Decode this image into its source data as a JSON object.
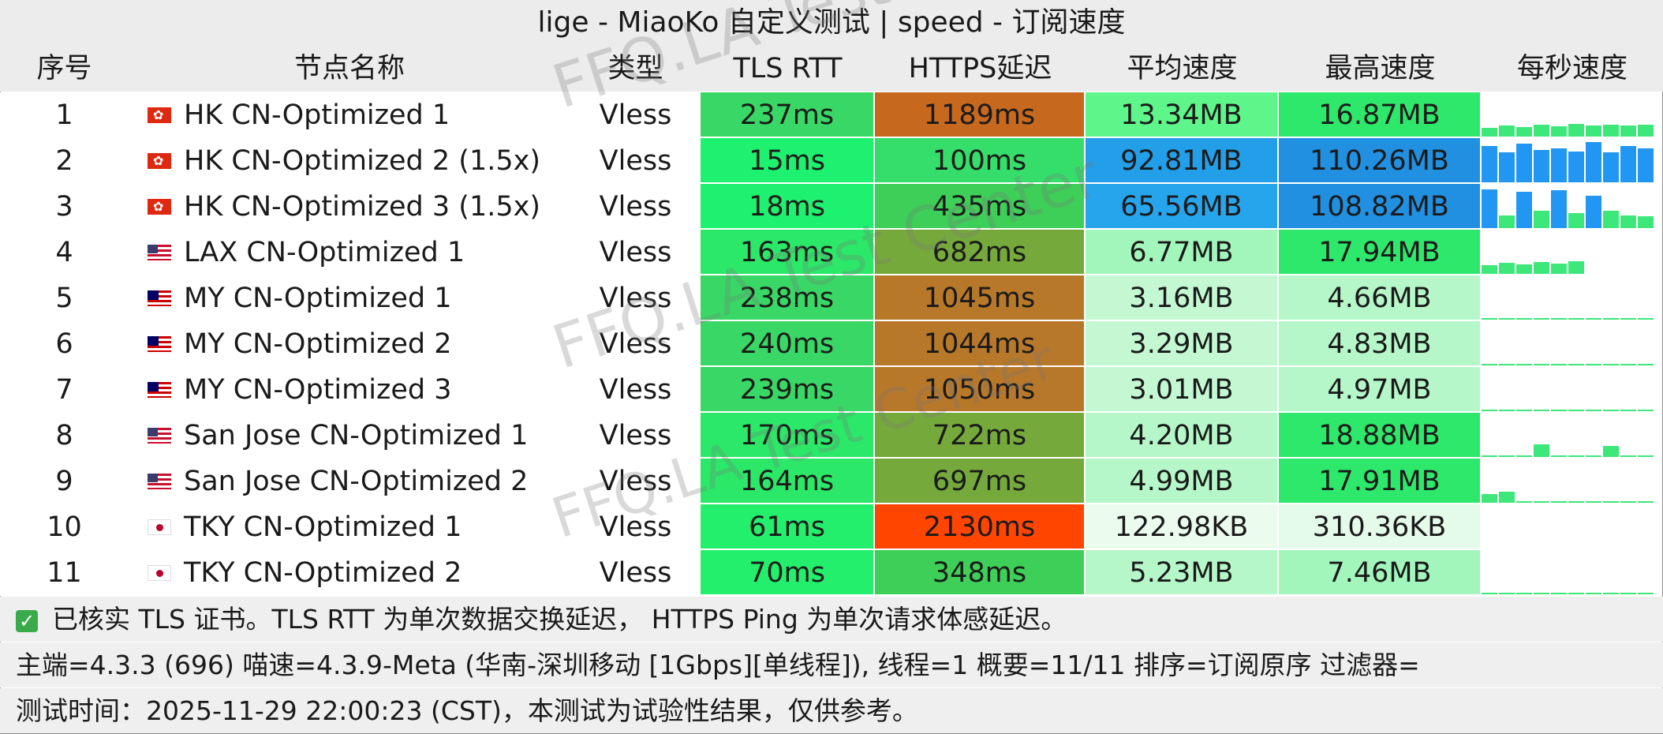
{
  "title": "lige - MiaoKo 自定义测试 | speed - 订阅速度",
  "headers": [
    "序号",
    "节点名称",
    "类型",
    "TLS RTT",
    "HTTPS延迟",
    "平均速度",
    "最高速度",
    "每秒速度"
  ],
  "rows": [
    {
      "idx": "1",
      "flag": "hk",
      "name": "HK CN-Optimized 1",
      "type": "Vless",
      "rtt": "237ms",
      "https": "1189ms",
      "avg": "13.34MB",
      "max": "16.87MB",
      "colors": {
        "rtt": "#39d866",
        "https": "#c6691e",
        "avg": "#5ef58b",
        "max": "#2ee86c"
      },
      "spark": [
        0.2,
        0.25,
        0.22,
        0.28,
        0.24,
        0.3,
        0.26,
        0.28,
        0.25,
        0.27
      ]
    },
    {
      "idx": "2",
      "flag": "hk",
      "name": "HK CN-Optimized 2 (1.5x)",
      "type": "Vless",
      "rtt": "15ms",
      "https": "100ms",
      "avg": "92.81MB",
      "max": "110.26MB",
      "colors": {
        "rtt": "#1ef06f",
        "https": "#35de6a",
        "avg": "#239ee8",
        "max": "#2190e0"
      },
      "spark": [
        0.85,
        0.7,
        0.9,
        0.75,
        0.8,
        0.72,
        0.95,
        0.7,
        0.85,
        0.8
      ]
    },
    {
      "idx": "3",
      "flag": "hk",
      "name": "HK CN-Optimized 3 (1.5x)",
      "type": "Vless",
      "rtt": "18ms",
      "https": "435ms",
      "avg": "65.56MB",
      "max": "108.82MB",
      "colors": {
        "rtt": "#1ef06f",
        "https": "#3dcf58",
        "avg": "#26a5ec",
        "max": "#2190e0"
      },
      "spark": [
        0.9,
        0.3,
        0.85,
        0.4,
        0.88,
        0.35,
        0.75,
        0.4,
        0.3,
        0.28
      ]
    },
    {
      "idx": "4",
      "flag": "us",
      "name": "LAX CN-Optimized 1",
      "type": "Vless",
      "rtt": "163ms",
      "https": "682ms",
      "avg": "6.77MB",
      "max": "17.94MB",
      "colors": {
        "rtt": "#2be868",
        "https": "#76a93c",
        "avg": "#a2f6bc",
        "max": "#2ee86c"
      },
      "spark": [
        0.2,
        0.25,
        0.22,
        0.28,
        0.24,
        0.3,
        0,
        0,
        0,
        0
      ]
    },
    {
      "idx": "5",
      "flag": "my",
      "name": "MY CN-Optimized 1",
      "type": "Vless",
      "rtt": "238ms",
      "https": "1045ms",
      "avg": "3.16MB",
      "max": "4.66MB",
      "colors": {
        "rtt": "#39d866",
        "https": "#b8782a",
        "avg": "#c3f8d2",
        "max": "#b6f7c9"
      },
      "spark": [
        0.04,
        0.04,
        0.04,
        0.04,
        0.04,
        0.04,
        0.04,
        0.04,
        0.04,
        0.04
      ]
    },
    {
      "idx": "6",
      "flag": "my",
      "name": "MY CN-Optimized 2",
      "type": "Vless",
      "rtt": "240ms",
      "https": "1044ms",
      "avg": "3.29MB",
      "max": "4.83MB",
      "colors": {
        "rtt": "#39d866",
        "https": "#b8782a",
        "avg": "#c3f8d2",
        "max": "#b6f7c9"
      },
      "spark": [
        0.04,
        0.04,
        0.04,
        0.04,
        0.04,
        0.04,
        0.04,
        0.04,
        0.04,
        0.04
      ]
    },
    {
      "idx": "7",
      "flag": "my",
      "name": "MY CN-Optimized 3",
      "type": "Vless",
      "rtt": "239ms",
      "https": "1050ms",
      "avg": "3.01MB",
      "max": "4.97MB",
      "colors": {
        "rtt": "#39d866",
        "https": "#b8782a",
        "avg": "#c3f8d2",
        "max": "#b6f7c9"
      },
      "spark": [
        0.04,
        0.04,
        0.04,
        0.04,
        0.04,
        0.04,
        0.04,
        0.04,
        0.04,
        0.04
      ]
    },
    {
      "idx": "8",
      "flag": "us",
      "name": "San Jose CN-Optimized 1",
      "type": "Vless",
      "rtt": "170ms",
      "https": "722ms",
      "avg": "4.20MB",
      "max": "18.88MB",
      "colors": {
        "rtt": "#2be868",
        "https": "#76a93c",
        "avg": "#b6f7c9",
        "max": "#2ee86c"
      },
      "spark": [
        0.04,
        0.04,
        0.04,
        0.3,
        0.04,
        0.04,
        0.04,
        0.25,
        0.04,
        0.04
      ]
    },
    {
      "idx": "9",
      "flag": "us",
      "name": "San Jose CN-Optimized 2",
      "type": "Vless",
      "rtt": "164ms",
      "https": "697ms",
      "avg": "4.99MB",
      "max": "17.91MB",
      "colors": {
        "rtt": "#2be868",
        "https": "#76a93c",
        "avg": "#b6f7c9",
        "max": "#2ee86c"
      },
      "spark": [
        0.2,
        0.25,
        0.04,
        0.04,
        0.04,
        0.04,
        0.04,
        0.04,
        0.04,
        0.04
      ]
    },
    {
      "idx": "10",
      "flag": "jp",
      "name": "TKY CN-Optimized 1",
      "type": "Vless",
      "rtt": "61ms",
      "https": "2130ms",
      "avg": "122.98KB",
      "max": "310.36KB",
      "colors": {
        "rtt": "#24ef6d",
        "https": "#ff4500",
        "avg": "#ebfcef",
        "max": "#e4fbea"
      },
      "spark": [
        0,
        0,
        0,
        0,
        0,
        0,
        0,
        0,
        0,
        0
      ]
    },
    {
      "idx": "11",
      "flag": "jp",
      "name": "TKY CN-Optimized 2",
      "type": "Vless",
      "rtt": "70ms",
      "https": "348ms",
      "avg": "5.23MB",
      "max": "7.46MB",
      "colors": {
        "rtt": "#24ef6d",
        "https": "#3dcf58",
        "avg": "#b6f7c9",
        "max": "#a2f6bc"
      },
      "spark": [
        0.04,
        0.04,
        0.04,
        0.04,
        0.04,
        0.04,
        0.04,
        0.04,
        0.04,
        0.04
      ]
    }
  ],
  "footer": {
    "line1": "已核实 TLS 证书。TLS RTT 为单次数据交换延迟， HTTPS Ping 为单次请求体感延迟。",
    "line2": "主端=4.3.3 (696) 喵速=4.3.9-Meta (华南-深圳移动 [1Gbps][单线程]), 线程=1 概要=11/11 排序=订阅原序 过滤器=",
    "line3": "测试时间：2025-11-29 22:00:23 (CST)，本测试为试验性结果，仅供参考。"
  },
  "watermark": "FFQ.LA Test Center",
  "accent": "#3aab4a"
}
